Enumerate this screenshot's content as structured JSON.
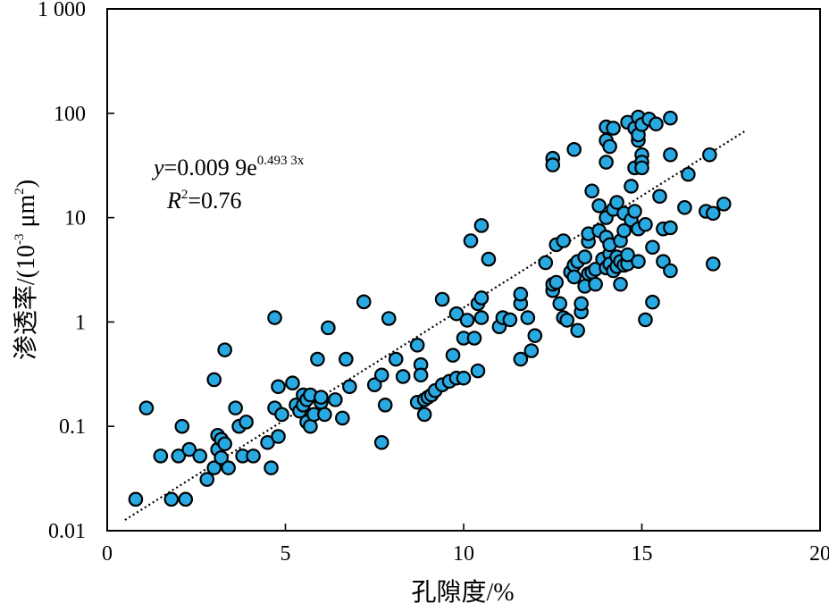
{
  "chart_data": {
    "type": "scatter",
    "title": "",
    "xlabel": "孔隙度/%",
    "ylabel_main": "渗透率/(10",
    "ylabel_exp": "-3",
    "ylabel_unit": " μm",
    "ylabel_unit_exp": "2",
    "ylabel_close": ")",
    "xlim": [
      0,
      20
    ],
    "ylim": [
      0.01,
      1000
    ],
    "y_scale": "log",
    "x_ticks": [
      0,
      5,
      10,
      15,
      20
    ],
    "x_tick_labels": [
      "0",
      "5",
      "10",
      "15",
      "20"
    ],
    "y_ticks": [
      0.01,
      0.1,
      1,
      10,
      100,
      1000
    ],
    "y_tick_labels": [
      "0.01",
      "0.1",
      "1",
      "10",
      "100",
      "1 000"
    ],
    "grid": false,
    "marker_color": "#29a9e1",
    "equation": {
      "y_var": "y",
      "equals_coef": "=0.009 9e",
      "exponent": "0.493 3x",
      "r_var": "R",
      "r_sup": "2",
      "r_value": "=0.76"
    },
    "trendline": {
      "a": 0.0099,
      "b": 0.4933,
      "x_start": 0.5,
      "x_end": 17.9
    },
    "points": [
      [
        0.8,
        0.02
      ],
      [
        1.1,
        0.15
      ],
      [
        1.5,
        0.052
      ],
      [
        1.8,
        0.02
      ],
      [
        2.0,
        0.052
      ],
      [
        2.1,
        0.1
      ],
      [
        2.2,
        0.02
      ],
      [
        2.3,
        0.06
      ],
      [
        2.6,
        0.052
      ],
      [
        2.8,
        0.031
      ],
      [
        3.0,
        0.28
      ],
      [
        3.0,
        0.04
      ],
      [
        3.1,
        0.082
      ],
      [
        3.1,
        0.06
      ],
      [
        3.2,
        0.05
      ],
      [
        3.2,
        0.075
      ],
      [
        3.3,
        0.068
      ],
      [
        3.3,
        0.54
      ],
      [
        3.4,
        0.04
      ],
      [
        3.6,
        0.15
      ],
      [
        3.7,
        0.1
      ],
      [
        3.8,
        0.052
      ],
      [
        3.9,
        0.11
      ],
      [
        4.1,
        0.052
      ],
      [
        4.5,
        0.07
      ],
      [
        4.6,
        0.04
      ],
      [
        4.7,
        1.1
      ],
      [
        4.7,
        0.15
      ],
      [
        4.8,
        0.24
      ],
      [
        4.8,
        0.08
      ],
      [
        4.9,
        0.13
      ],
      [
        5.2,
        0.26
      ],
      [
        5.3,
        0.16
      ],
      [
        5.4,
        0.14
      ],
      [
        5.5,
        0.16
      ],
      [
        5.5,
        0.2
      ],
      [
        5.6,
        0.18
      ],
      [
        5.6,
        0.11
      ],
      [
        5.7,
        0.2
      ],
      [
        5.7,
        0.1
      ],
      [
        5.8,
        0.13
      ],
      [
        5.9,
        0.44
      ],
      [
        6.0,
        0.17
      ],
      [
        6.0,
        0.19
      ],
      [
        6.1,
        0.13
      ],
      [
        6.2,
        0.88
      ],
      [
        6.4,
        0.18
      ],
      [
        6.6,
        0.12
      ],
      [
        6.7,
        0.44
      ],
      [
        6.8,
        0.24
      ],
      [
        7.2,
        1.56
      ],
      [
        7.5,
        0.25
      ],
      [
        7.7,
        0.31
      ],
      [
        7.7,
        0.07
      ],
      [
        7.8,
        0.16
      ],
      [
        7.9,
        1.08
      ],
      [
        8.1,
        0.44
      ],
      [
        8.3,
        0.3
      ],
      [
        8.7,
        0.6
      ],
      [
        8.7,
        0.17
      ],
      [
        8.8,
        0.39
      ],
      [
        8.8,
        0.31
      ],
      [
        8.9,
        0.18
      ],
      [
        8.9,
        0.13
      ],
      [
        9.0,
        0.19
      ],
      [
        9.1,
        0.2
      ],
      [
        9.2,
        0.22
      ],
      [
        9.4,
        0.25
      ],
      [
        9.4,
        1.65
      ],
      [
        9.6,
        0.27
      ],
      [
        9.7,
        0.48
      ],
      [
        9.8,
        0.29
      ],
      [
        9.8,
        1.2
      ],
      [
        10.0,
        0.29
      ],
      [
        10.0,
        0.7
      ],
      [
        10.1,
        1.04
      ],
      [
        10.2,
        6.0
      ],
      [
        10.3,
        0.7
      ],
      [
        10.4,
        1.5
      ],
      [
        10.4,
        0.34
      ],
      [
        10.5,
        1.1
      ],
      [
        10.5,
        1.7
      ],
      [
        10.5,
        8.4
      ],
      [
        10.7,
        4.0
      ],
      [
        11.0,
        0.9
      ],
      [
        11.1,
        1.1
      ],
      [
        11.3,
        1.05
      ],
      [
        11.6,
        0.44
      ],
      [
        11.6,
        1.5
      ],
      [
        11.6,
        1.85
      ],
      [
        11.8,
        1.1
      ],
      [
        11.9,
        0.53
      ],
      [
        12.0,
        0.74
      ],
      [
        12.3,
        3.7
      ],
      [
        12.5,
        2.0
      ],
      [
        12.5,
        2.3
      ],
      [
        12.5,
        37.0
      ],
      [
        12.5,
        32.0
      ],
      [
        12.6,
        5.5
      ],
      [
        12.6,
        2.4
      ],
      [
        12.7,
        1.5
      ],
      [
        12.8,
        6.0
      ],
      [
        12.8,
        1.1
      ],
      [
        12.9,
        1.04
      ],
      [
        13.0,
        3.0
      ],
      [
        13.1,
        3.5
      ],
      [
        13.1,
        45.0
      ],
      [
        13.1,
        2.7
      ],
      [
        13.2,
        3.8
      ],
      [
        13.2,
        0.83
      ],
      [
        13.3,
        1.25
      ],
      [
        13.3,
        1.5
      ],
      [
        13.4,
        4.2
      ],
      [
        13.4,
        2.2
      ],
      [
        13.5,
        2.9
      ],
      [
        13.5,
        5.9
      ],
      [
        13.5,
        7.0
      ],
      [
        13.6,
        18.0
      ],
      [
        13.6,
        3.0
      ],
      [
        13.7,
        2.3
      ],
      [
        13.7,
        3.2
      ],
      [
        13.8,
        7.5
      ],
      [
        13.8,
        13.0
      ],
      [
        13.9,
        4.0
      ],
      [
        14.0,
        3.3
      ],
      [
        14.0,
        6.5
      ],
      [
        14.0,
        10.0
      ],
      [
        14.0,
        55.0
      ],
      [
        14.0,
        74.0
      ],
      [
        14.0,
        34.0
      ],
      [
        14.1,
        48.0
      ],
      [
        14.1,
        4.5
      ],
      [
        14.1,
        5.5
      ],
      [
        14.1,
        3.6
      ],
      [
        14.2,
        3.1
      ],
      [
        14.2,
        12.0
      ],
      [
        14.2,
        72.0
      ],
      [
        14.3,
        14.0
      ],
      [
        14.3,
        4.2
      ],
      [
        14.3,
        3.4
      ],
      [
        14.4,
        2.3
      ],
      [
        14.4,
        6.0
      ],
      [
        14.4,
        3.8
      ],
      [
        14.5,
        11.0
      ],
      [
        14.5,
        3.5
      ],
      [
        14.5,
        7.5
      ],
      [
        14.6,
        3.6
      ],
      [
        14.6,
        4.4
      ],
      [
        14.6,
        82.0
      ],
      [
        14.7,
        20.0
      ],
      [
        14.7,
        9.5
      ],
      [
        14.8,
        11.5
      ],
      [
        14.8,
        30.0
      ],
      [
        14.8,
        72.0
      ],
      [
        14.9,
        3.8
      ],
      [
        14.9,
        7.8
      ],
      [
        14.9,
        55.0
      ],
      [
        14.9,
        62.0
      ],
      [
        14.9,
        92.0
      ],
      [
        15.0,
        78.0
      ],
      [
        15.0,
        40.0
      ],
      [
        15.0,
        34.0
      ],
      [
        15.0,
        30.0
      ],
      [
        15.1,
        8.6
      ],
      [
        15.1,
        1.05
      ],
      [
        15.2,
        88.0
      ],
      [
        15.3,
        5.2
      ],
      [
        15.3,
        1.55
      ],
      [
        15.4,
        79.0
      ],
      [
        15.5,
        16.0
      ],
      [
        15.6,
        3.8
      ],
      [
        15.6,
        7.8
      ],
      [
        15.8,
        40.0
      ],
      [
        15.8,
        8.0
      ],
      [
        15.8,
        3.1
      ],
      [
        15.8,
        90.0
      ],
      [
        16.2,
        12.5
      ],
      [
        16.3,
        26.0
      ],
      [
        16.8,
        11.5
      ],
      [
        16.9,
        40.0
      ],
      [
        17.0,
        11.0
      ],
      [
        17.0,
        3.6
      ],
      [
        17.3,
        13.5
      ]
    ]
  }
}
